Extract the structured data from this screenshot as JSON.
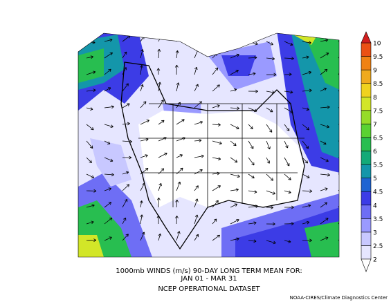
{
  "map": {
    "caption": [
      "1000mb WINDS (m/s)   90-DAY LONG TERM MEAN FOR:",
      "JAN 01 - MAR 31",
      "NCEP OPERATIONAL DATASET"
    ],
    "credit": "NOAA-CIRES/Climate Diagnostics Center",
    "colorbar": {
      "levels": [
        2,
        2.5,
        3,
        3.5,
        4,
        4.5,
        5,
        5.5,
        6,
        6.5,
        7,
        7.5,
        8,
        8.5,
        9,
        9.5,
        10
      ],
      "below_color": "#ffffff",
      "colors": [
        "#e6e6ff",
        "#c8c8ff",
        "#9a9aff",
        "#6e6ef5",
        "#3c3ce6",
        "#1e64d2",
        "#1496aa",
        "#14aa78",
        "#28be50",
        "#5ad232",
        "#96dc28",
        "#d2e628",
        "#f0d21e",
        "#f0aa1e",
        "#f08214",
        "#eb5014"
      ],
      "above_color": "#d21e1e"
    }
  }
}
